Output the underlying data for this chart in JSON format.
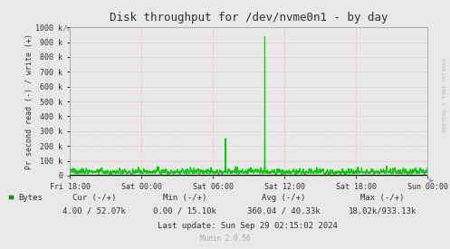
{
  "title": "Disk throughput for /dev/nvme0n1 - by day",
  "ylabel": "Pr second read (-) / write (+)",
  "background_color": "#e8e8e8",
  "plot_bg_color": "#e8e8e8",
  "grid_color": "#ff9999",
  "line_color": "#00cc00",
  "axis_color": "#333333",
  "ylim": [
    0,
    1000000
  ],
  "yticks": [
    0,
    100000,
    200000,
    300000,
    400000,
    500000,
    600000,
    700000,
    800000,
    900000,
    1000000
  ],
  "ytick_labels": [
    "0",
    "100 k",
    "200 k",
    "300 k",
    "400 k",
    "500 k",
    "600 k",
    "700 k",
    "800 k",
    "900 k",
    "1000 k"
  ],
  "xtick_labels": [
    "Fri 18:00",
    "Sat 00:00",
    "Sat 06:00",
    "Sat 12:00",
    "Sat 18:00",
    "Sun 00:00"
  ],
  "legend_label": "Bytes",
  "legend_color": "#00aa00",
  "cur_label": "Cur (-/+)",
  "min_label": "Min (-/+)",
  "avg_label": "Avg (-/+)",
  "max_label": "Max (-/+)",
  "cur_val": "4.00 / 52.07k",
  "min_val": "0.00 / 15.10k",
  "avg_val": "360.04 / 40.33k",
  "max_val": "18.02k/933.13k",
  "last_update": "Last update: Sun Sep 29 02:15:02 2024",
  "munin_text": "Munin 2.0.56",
  "watermark": "RRDTOOL / TOBI OETIKER"
}
